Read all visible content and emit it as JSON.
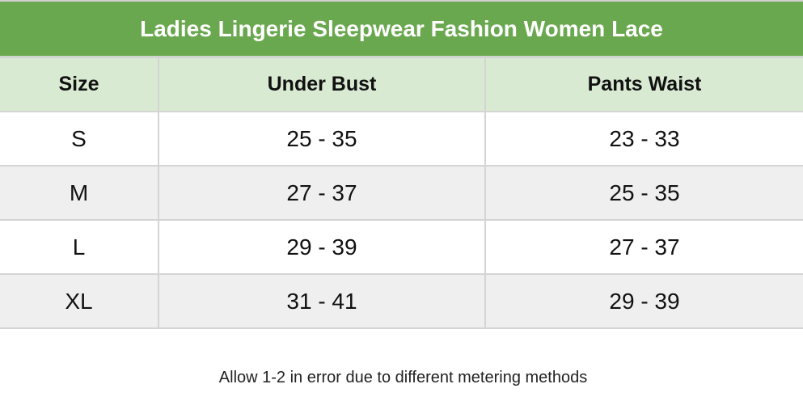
{
  "title": "Ladies Lingerie Sleepwear Fashion Women Lace",
  "columns": [
    "Size",
    "Under Bust",
    "Pants Waist"
  ],
  "rows": [
    [
      "S",
      "25 - 35",
      "23 - 33"
    ],
    [
      "M",
      "27 - 37",
      "25 - 35"
    ],
    [
      "L",
      "29 - 39",
      "27 - 37"
    ],
    [
      "XL",
      "31 - 41",
      "29 - 39"
    ]
  ],
  "note": "Allow 1-2 in error due to different metering methods",
  "colors": {
    "title_bg": "#6aa84f",
    "header_bg": "#d9ead3",
    "alt_row_bg": "#efefef"
  }
}
